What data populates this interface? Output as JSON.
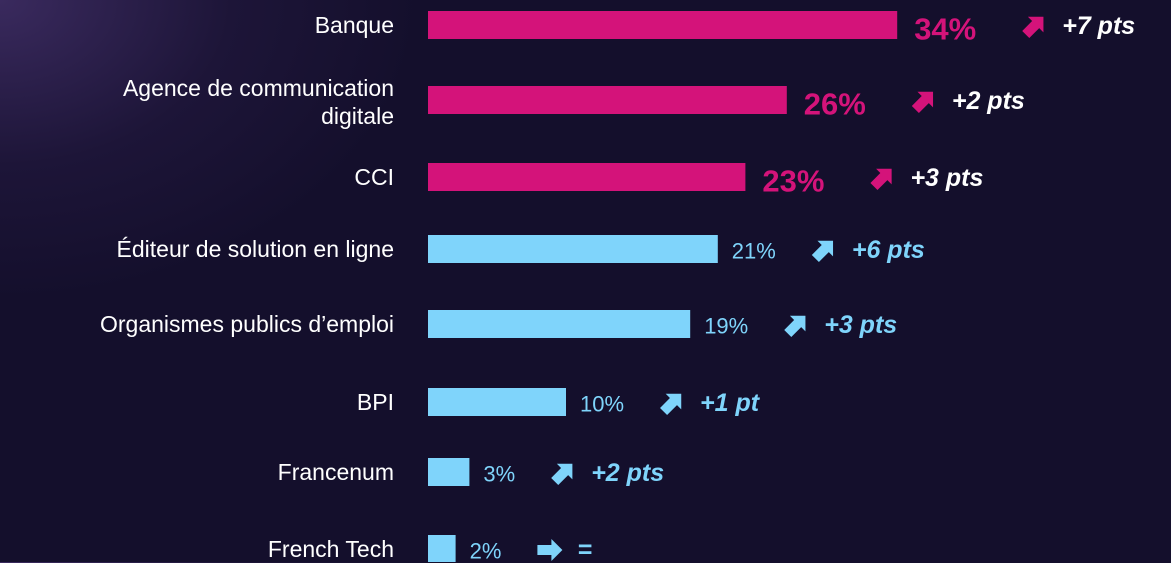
{
  "chart_data": {
    "type": "bar",
    "orientation": "horizontal",
    "categories": [
      "Banque",
      "Agence de communication digitale",
      "CCI",
      "Éditeur de solution en ligne",
      "Organismes publics d’emploi",
      "BPI",
      "Francenum",
      "French Tech"
    ],
    "values": [
      34,
      26,
      23,
      21,
      19,
      10,
      3,
      2
    ],
    "value_labels": [
      "34%",
      "26%",
      "23%",
      "21%",
      "19%",
      "10%",
      "3%",
      "2%"
    ],
    "colors": [
      "#d4137a",
      "#d4137a",
      "#d4137a",
      "#7fd4fb",
      "#7fd4fb",
      "#7fd4fb",
      "#7fd4fb",
      "#7fd4fb"
    ],
    "emphasis": [
      true,
      true,
      true,
      false,
      false,
      false,
      false,
      false
    ],
    "changes": [
      "+7 pts",
      "+2 pts",
      "+3 pts",
      "+6 pts",
      "+3 pts",
      "+1 pt",
      "+2 pts",
      "="
    ],
    "change_colors": [
      "#ffffff",
      "#ffffff",
      "#ffffff",
      "#7fd4fb",
      "#7fd4fb",
      "#7fd4fb",
      "#7fd4fb",
      "#7fd4fb"
    ],
    "arrows": [
      "up",
      "up",
      "up",
      "up",
      "up",
      "up",
      "up",
      "right"
    ]
  }
}
